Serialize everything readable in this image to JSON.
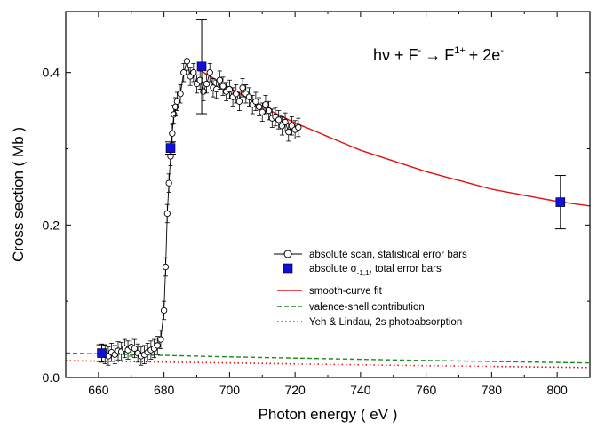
{
  "chart_data": {
    "type": "scatter",
    "xlabel": "Photon energy  ( eV )",
    "ylabel": "Cross section  ( Mb )",
    "xlim": [
      650,
      810
    ],
    "ylim": [
      0,
      0.48
    ],
    "x_ticks": [
      660,
      680,
      700,
      720,
      740,
      760,
      780,
      800
    ],
    "y_ticks": [
      0.0,
      0.2,
      0.4
    ],
    "y_tick_labels": [
      "0.0",
      "0.2",
      "0.4"
    ],
    "annotation": {
      "lead": "hν + F",
      "sup1": "-",
      "arrow": "→",
      "mid": "F",
      "sup2": "1+",
      "tail": "+ 2e",
      "sup3": "-"
    },
    "legend": [
      {
        "label": "absolute scan, statistical error bars"
      },
      {
        "label_main": "absolute σ",
        "label_sub": "-1,1",
        "label_rest": ", total error bars"
      },
      {
        "label": "smooth-curve fit"
      },
      {
        "label": "valence-shell contribution"
      },
      {
        "label": "Yeh & Lindau, 2s photoabsorption"
      }
    ],
    "legend_position": "right",
    "series": [
      {
        "name": "absolute scan, statistical error bars",
        "style": "open-circle-line",
        "x": [
          661,
          662,
          663,
          664,
          665,
          666,
          667,
          668,
          669,
          670,
          671,
          672,
          673,
          674,
          675,
          676,
          677,
          678,
          679,
          680,
          680.5,
          681,
          681.5,
          682,
          682.5,
          683,
          683.5,
          684,
          685,
          686,
          687,
          688,
          689,
          690,
          691,
          692,
          693,
          694,
          695,
          696,
          697,
          698,
          699,
          700,
          701,
          702,
          703,
          704,
          705,
          706,
          707,
          708,
          709,
          710,
          711,
          712,
          713,
          714,
          715,
          716,
          717,
          718,
          719,
          720,
          721
        ],
        "y": [
          0.032,
          0.03,
          0.028,
          0.033,
          0.03,
          0.035,
          0.034,
          0.038,
          0.036,
          0.04,
          0.038,
          0.032,
          0.028,
          0.03,
          0.033,
          0.036,
          0.038,
          0.042,
          0.05,
          0.088,
          0.145,
          0.215,
          0.255,
          0.29,
          0.32,
          0.345,
          0.355,
          0.362,
          0.372,
          0.4,
          0.415,
          0.395,
          0.4,
          0.385,
          0.39,
          0.375,
          0.385,
          0.4,
          0.38,
          0.378,
          0.39,
          0.382,
          0.375,
          0.378,
          0.368,
          0.372,
          0.362,
          0.38,
          0.372,
          0.368,
          0.358,
          0.362,
          0.355,
          0.348,
          0.358,
          0.35,
          0.34,
          0.342,
          0.338,
          0.33,
          0.335,
          0.322,
          0.33,
          0.325,
          0.328
        ],
        "y_error": 0.012
      },
      {
        "name": "absolute σ-1,1, total error bars",
        "style": "filled-square",
        "color": "#1010d8",
        "x": [
          661,
          682,
          691.5,
          801
        ],
        "y": [
          0.032,
          0.301,
          0.408,
          0.23
        ],
        "y_error": [
          0.011,
          0.008,
          0.062,
          0.035
        ]
      },
      {
        "name": "smooth-curve fit",
        "style": "solid-line",
        "color": "#e01010",
        "x": [
          691,
          700,
          710,
          720,
          740,
          760,
          780,
          800,
          810
        ],
        "y": [
          0.403,
          0.38,
          0.355,
          0.334,
          0.298,
          0.27,
          0.247,
          0.231,
          0.225
        ]
      },
      {
        "name": "valence-shell contribution",
        "style": "dashed-line",
        "color": "#1a8a1a",
        "x": [
          650,
          700,
          750,
          810
        ],
        "y": [
          0.032,
          0.027,
          0.023,
          0.019
        ]
      },
      {
        "name": "Yeh & Lindau, 2s photoabsorption",
        "style": "dotted-line",
        "color": "#e01010",
        "x": [
          650,
          700,
          750,
          810
        ],
        "y": [
          0.022,
          0.019,
          0.016,
          0.013
        ]
      }
    ]
  }
}
